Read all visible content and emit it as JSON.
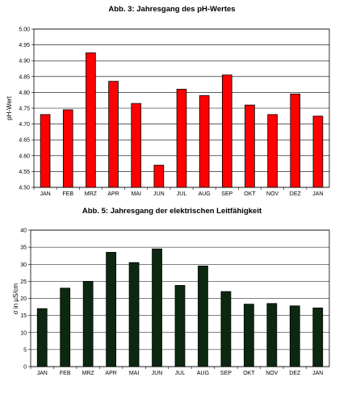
{
  "chart_data": [
    {
      "type": "bar",
      "title": "Abb. 3: Jahresgang des pH-Wertes",
      "xlabel": "",
      "ylabel": "pH-Wert",
      "ylim": [
        4.5,
        5.0
      ],
      "yticks": [
        "4.50",
        "4.55",
        "4.60",
        "4.65",
        "4.70",
        "4.75",
        "4.80",
        "4.85",
        "4.90",
        "4.95",
        "5.00"
      ],
      "categories": [
        "JAN",
        "FEB",
        "MRZ",
        "APR",
        "MAI",
        "JUN",
        "JUL",
        "AUG",
        "SEP",
        "OKT",
        "NOV",
        "DEZ",
        "JAN"
      ],
      "values": [
        4.73,
        4.745,
        4.925,
        4.835,
        4.765,
        4.57,
        4.81,
        4.79,
        4.855,
        4.76,
        4.73,
        4.795,
        4.725
      ],
      "bar_color": "#ff0000",
      "grid": true
    },
    {
      "type": "bar",
      "title": "Abb. 5: Jahresgang der elektrischen Leitfähigkeit",
      "xlabel": "",
      "ylabel": "σ in µS/cm",
      "ylim": [
        0,
        40
      ],
      "yticks": [
        "0",
        "5",
        "10",
        "15",
        "20",
        "25",
        "30",
        "35",
        "40"
      ],
      "categories": [
        "JAN",
        "FEB",
        "MRZ",
        "APR",
        "MAI",
        "JUN",
        "JUL",
        "AUG",
        "SEP",
        "OKT",
        "NOV",
        "DEZ",
        "JAN"
      ],
      "values": [
        17,
        23,
        25,
        33.5,
        30.5,
        34.5,
        23.8,
        29.5,
        22,
        18.3,
        18.5,
        17.8,
        17.2
      ],
      "bar_color": "#0d2810",
      "grid": true
    }
  ]
}
